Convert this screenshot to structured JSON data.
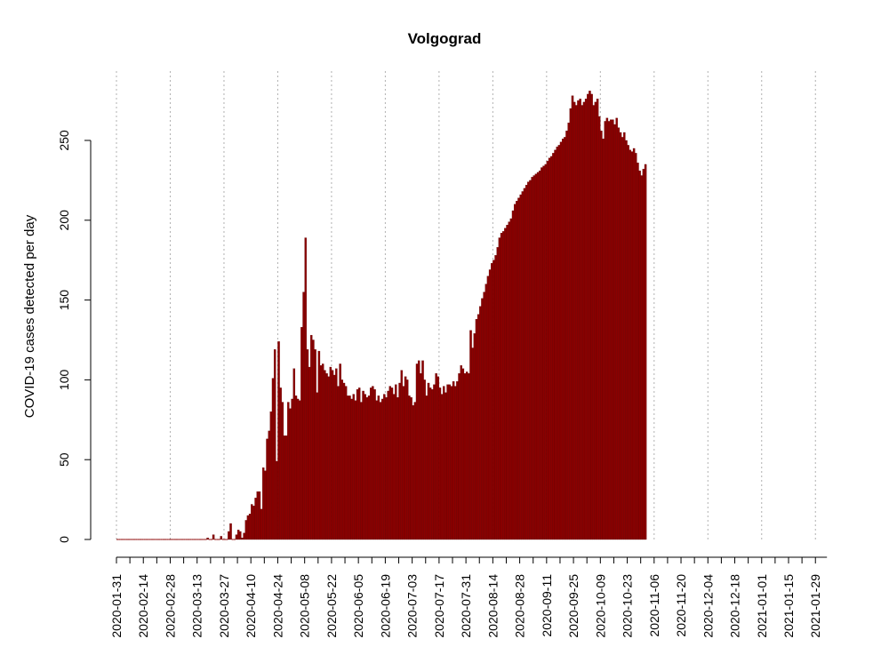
{
  "chart_data": {
    "type": "bar",
    "title": "Volgograd",
    "xlabel": "",
    "ylabel": "COVID-19 cases detected per day",
    "ylim": [
      0,
      285
    ],
    "y_ticks": [
      0,
      50,
      100,
      150,
      200,
      250
    ],
    "x_range": [
      "2020-01-31",
      "2021-02-04"
    ],
    "x_tick_labels": [
      "2020-01-31",
      "2020-02-14",
      "2020-02-28",
      "2020-03-13",
      "2020-03-27",
      "2020-04-10",
      "2020-04-24",
      "2020-05-08",
      "2020-05-22",
      "2020-06-05",
      "2020-06-19",
      "2020-07-03",
      "2020-07-17",
      "2020-07-31",
      "2020-08-14",
      "2020-08-28",
      "2020-09-11",
      "2020-09-25",
      "2020-10-09",
      "2020-10-23",
      "2020-11-06",
      "2020-11-20",
      "2020-12-04",
      "2020-12-18",
      "2021-01-01",
      "2021-01-15",
      "2021-01-29"
    ],
    "vertical_gridlines_at": [
      "2020-01-31",
      "2020-02-28",
      "2020-03-27",
      "2020-04-24",
      "2020-05-22",
      "2020-06-19",
      "2020-07-17",
      "2020-08-14",
      "2020-09-11",
      "2020-10-09",
      "2020-11-06",
      "2020-12-04",
      "2021-01-01",
      "2021-01-29"
    ],
    "grid": "vertical dotted",
    "legend": "none",
    "bar_color": "#8b0000",
    "series": [
      {
        "start_date": "2020-01-31",
        "values": [
          0,
          0,
          0,
          0,
          0,
          0,
          0,
          0,
          0,
          0,
          0,
          0,
          0,
          0,
          0,
          0,
          0,
          0,
          0,
          0,
          0,
          0,
          0,
          0,
          0,
          0,
          0,
          0,
          0,
          0,
          0,
          0,
          0,
          0,
          0,
          0,
          0,
          0,
          0,
          0,
          0,
          0,
          0,
          0,
          0,
          0,
          0,
          1,
          0,
          0,
          3,
          0,
          0,
          0,
          2,
          0,
          0,
          0,
          5,
          10,
          0,
          0,
          3,
          6,
          5,
          1,
          4,
          12,
          15,
          16,
          22,
          21,
          26,
          30,
          30,
          19,
          45,
          43,
          63,
          68,
          80,
          101,
          119,
          49,
          124,
          95,
          86,
          65,
          65,
          86,
          82,
          88,
          107,
          90,
          88,
          87,
          133,
          155,
          189,
          119,
          108,
          128,
          125,
          119,
          92,
          118,
          109,
          110,
          106,
          104,
          102,
          108,
          106,
          103,
          107,
          96,
          110,
          100,
          98,
          96,
          90,
          90,
          88,
          91,
          87,
          94,
          95,
          86,
          93,
          91,
          89,
          90,
          95,
          96,
          94,
          87,
          90,
          86,
          88,
          91,
          89,
          93,
          96,
          95,
          91,
          97,
          89,
          98,
          106,
          96,
          102,
          100,
          90,
          89,
          84,
          86,
          110,
          112,
          104,
          112,
          100,
          90,
          98,
          95,
          94,
          97,
          104,
          102,
          95,
          91,
          96,
          92,
          97,
          97,
          96,
          99,
          96,
          99,
          104,
          109,
          107,
          104,
          105,
          104,
          131,
          120,
          129,
          138,
          141,
          146,
          151,
          155,
          160,
          165,
          169,
          173,
          175,
          178,
          183,
          189,
          192,
          193,
          195,
          197,
          199,
          201,
          206,
          210,
          212,
          214,
          216,
          218,
          220,
          222,
          224,
          225,
          227,
          228,
          229,
          230,
          231,
          233,
          234,
          235,
          237,
          239,
          240,
          242,
          244,
          246,
          247,
          249,
          251,
          252,
          256,
          261,
          270,
          278,
          274,
          272,
          275,
          276,
          272,
          274,
          276,
          279,
          281,
          279,
          272,
          274,
          276,
          265,
          256,
          251,
          262,
          264,
          262,
          263,
          263,
          260,
          264,
          258,
          255,
          252,
          255,
          250,
          247,
          244,
          243,
          245,
          242,
          236,
          231,
          228,
          232,
          235
        ]
      }
    ]
  }
}
